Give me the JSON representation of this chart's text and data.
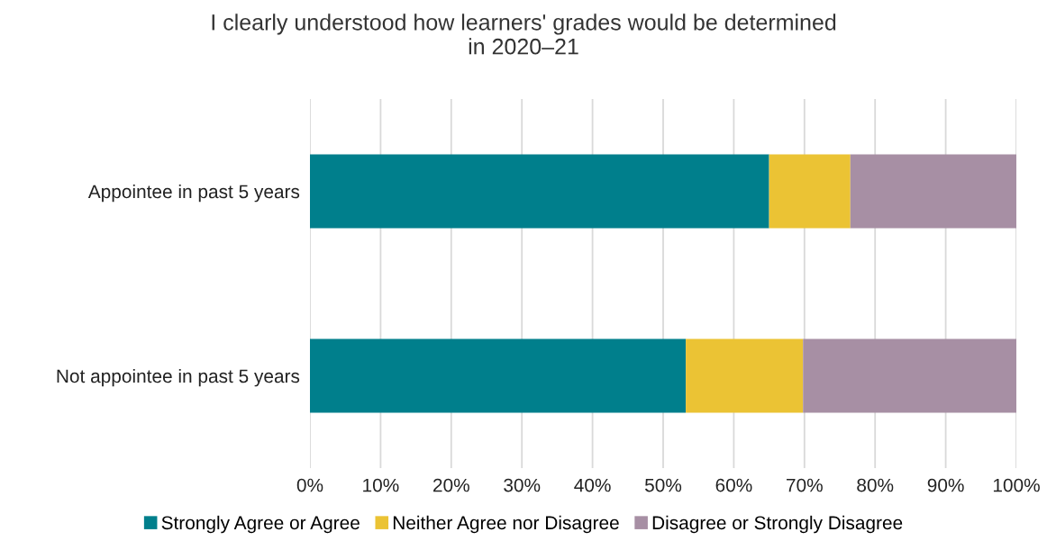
{
  "chart_data": {
    "type": "bar",
    "orientation": "horizontal",
    "stacked": true,
    "title": "I clearly understood how learners' grades would be determined\nin 2020–21",
    "categories": [
      "Appointee in past 5 years",
      "Not appointee in past 5 years"
    ],
    "series": [
      {
        "name": "Strongly Agree or Agree",
        "color": "#007f8c",
        "values": [
          65,
          53.2
        ]
      },
      {
        "name": "Neither Agree nor Disagree",
        "color": "#ebc334",
        "values": [
          11.5,
          16.6
        ]
      },
      {
        "name": "Disagree or Strongly Disagree",
        "color": "#a78fa4",
        "values": [
          23.5,
          30.2
        ]
      }
    ],
    "xlim": [
      0,
      100
    ],
    "xticks": [
      {
        "value": 0,
        "label": "0%"
      },
      {
        "value": 10,
        "label": "10%"
      },
      {
        "value": 20,
        "label": "20%"
      },
      {
        "value": 30,
        "label": "30%"
      },
      {
        "value": 40,
        "label": "40%"
      },
      {
        "value": 50,
        "label": "50%"
      },
      {
        "value": 60,
        "label": "60%"
      },
      {
        "value": 70,
        "label": "70%"
      },
      {
        "value": 80,
        "label": "80%"
      },
      {
        "value": 90,
        "label": "90%"
      },
      {
        "value": 100,
        "label": "100%"
      }
    ],
    "grid": "x",
    "legend": "bottom"
  }
}
